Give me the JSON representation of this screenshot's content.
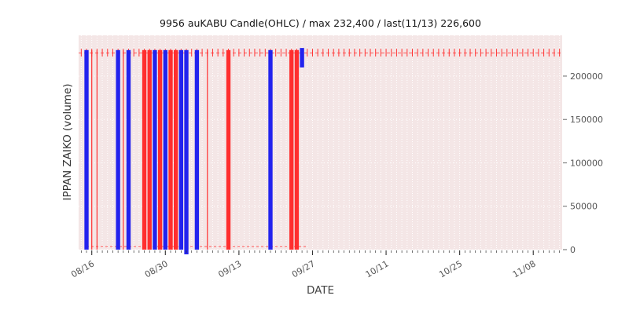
{
  "title": "9956 auKABU Candle(OHLC) / max 232,400 / last(11/13) 226,600",
  "axes": {
    "x_label": "DATE",
    "y_label": "IPPAN ZAIKO (volume)"
  },
  "chart_data": {
    "type": "bar",
    "subtype": "ohlc-candle-volume",
    "title": "9956 auKABU Candle(OHLC) / max 232,400 / last(11/13) 226,600",
    "xlabel": "DATE",
    "ylabel": "IPPAN ZAIKO (volume)",
    "ylim": [
      0,
      247000
    ],
    "yticks": [
      0,
      50000,
      100000,
      150000,
      200000
    ],
    "xticks": [
      "08/16",
      "08/30",
      "09/13",
      "09/27",
      "10/11",
      "10/25",
      "11/08"
    ],
    "date_spans": [
      {
        "month": "08",
        "from": 14,
        "to": 31
      },
      {
        "month": "09",
        "from": 1,
        "to": 30
      },
      {
        "month": "10",
        "from": 1,
        "to": 31
      },
      {
        "month": "11",
        "from": 1,
        "to": 13
      }
    ],
    "max_value": 232400,
    "last": {
      "date": "11/13",
      "value": 226600
    },
    "default_day": {
      "low": 222500,
      "high": 231500,
      "color": "red"
    },
    "close_line_value": 226600,
    "zero_line": {
      "from": "08/15",
      "to": "09/26",
      "value": 3500
    },
    "events_default": {
      "low": 0,
      "high": 230000
    },
    "events": [
      {
        "date": "08/15",
        "color": "blue",
        "width": "thick"
      },
      {
        "date": "08/16",
        "color": "red",
        "width": "thin"
      },
      {
        "date": "08/17",
        "color": "red",
        "width": "thin"
      },
      {
        "date": "08/21",
        "color": "blue",
        "width": "thick"
      },
      {
        "date": "08/22",
        "color": "red",
        "width": "thin"
      },
      {
        "date": "08/23",
        "color": "blue",
        "width": "thick"
      },
      {
        "date": "08/26",
        "color": "red",
        "width": "thick"
      },
      {
        "date": "08/27",
        "color": "red",
        "width": "thick"
      },
      {
        "date": "08/28",
        "color": "blue",
        "width": "thick"
      },
      {
        "date": "08/29",
        "color": "red",
        "width": "thick"
      },
      {
        "date": "08/30",
        "color": "blue",
        "width": "thick"
      },
      {
        "date": "08/31",
        "color": "red",
        "width": "thick"
      },
      {
        "date": "09/01",
        "color": "red",
        "width": "thick"
      },
      {
        "date": "09/02",
        "color": "blue",
        "width": "thick"
      },
      {
        "date": "09/03",
        "color": "blue",
        "width": "thick",
        "notch_below_zero": true
      },
      {
        "date": "09/05",
        "color": "blue",
        "width": "thick"
      },
      {
        "date": "09/07",
        "color": "red",
        "width": "thin"
      },
      {
        "date": "09/11",
        "color": "red",
        "width": "thick"
      },
      {
        "date": "09/19",
        "color": "blue",
        "width": "thick"
      },
      {
        "date": "09/23",
        "color": "red",
        "width": "thick"
      },
      {
        "date": "09/24",
        "color": "red",
        "width": "thick"
      },
      {
        "date": "09/25",
        "color": "blue",
        "width": "thick",
        "low": 210000,
        "high": 232400
      }
    ],
    "colors": {
      "blue": "#2222ee",
      "red": "#ff2e2e",
      "wick": "#ff3333",
      "dash_line": "#ff5555",
      "plot_bg": "#f4e6e6",
      "grid": "#ffffff",
      "tick_label": "#555555",
      "tick_mark": "#333333"
    }
  }
}
